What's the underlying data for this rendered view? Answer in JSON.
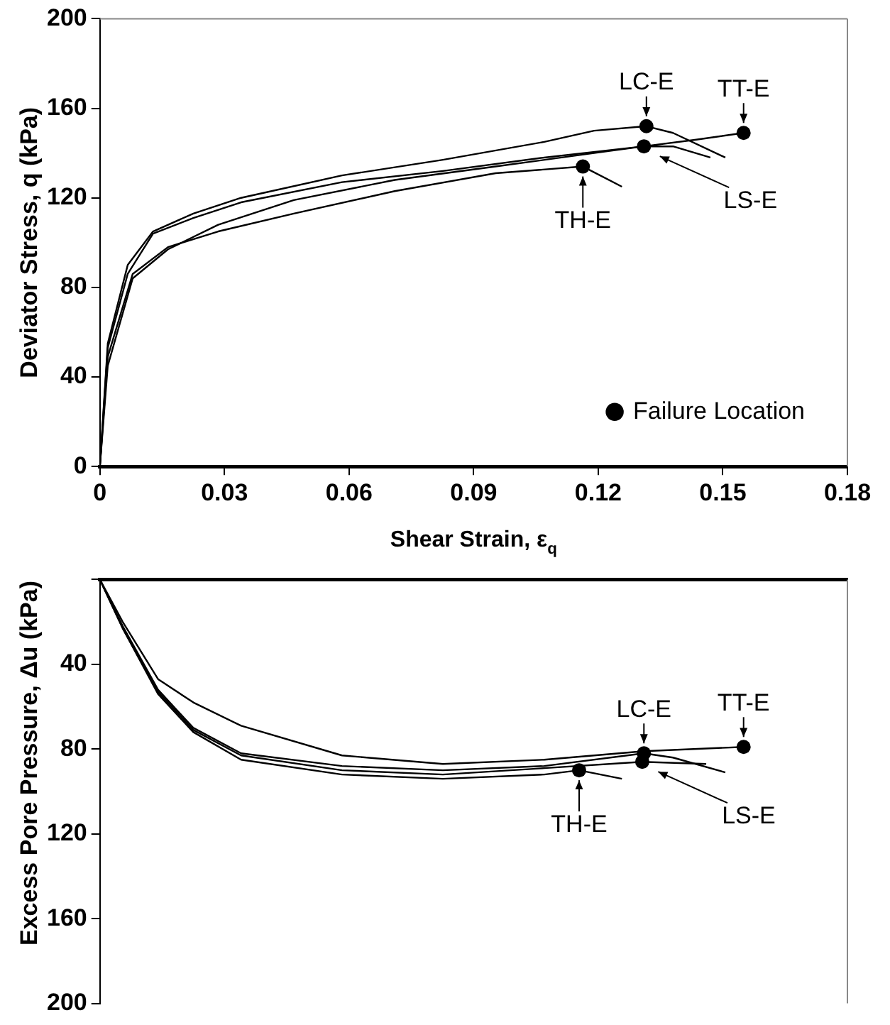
{
  "chart_data": [
    {
      "type": "line",
      "ylabel": "Deviator Stress, q (kPa)",
      "xlabel": "Shear Strain, ε$_{q}$",
      "xlim": [
        0,
        0.18
      ],
      "xticks": [
        0,
        0.03,
        0.06,
        0.09,
        0.12,
        0.15,
        0.18
      ],
      "ylim": [
        0,
        200
      ],
      "yticks": [
        0,
        40,
        80,
        120,
        160,
        200
      ],
      "legend": "bottom right",
      "series": [
        {
          "name": "LC-E",
          "color": "#000000",
          "x": [
            0,
            0.0019,
            0.0067,
            0.0128,
            0.0225,
            0.034,
            0.0583,
            0.0826,
            0.107,
            0.119,
            0.1316,
            0.138,
            0.1506
          ],
          "values": [
            0,
            55,
            90,
            105,
            113,
            120,
            130,
            137,
            145,
            150,
            152,
            149,
            138
          ]
        },
        {
          "name": "LS-E",
          "color": "#000000",
          "x": [
            0,
            0.0019,
            0.0067,
            0.0128,
            0.0225,
            0.034,
            0.0583,
            0.0826,
            0.107,
            0.131,
            0.138,
            0.147
          ],
          "values": [
            0,
            53,
            86,
            104,
            111,
            118,
            127,
            132,
            138,
            143,
            143,
            138
          ]
        },
        {
          "name": "TT-E",
          "color": "#000000",
          "x": [
            0,
            0.0019,
            0.0079,
            0.0164,
            0.0285,
            0.0467,
            0.071,
            0.0953,
            0.119,
            0.131,
            0.1436,
            0.155
          ],
          "values": [
            0,
            45,
            84,
            97,
            108,
            119,
            128,
            134,
            140,
            143,
            146,
            149
          ]
        },
        {
          "name": "TH-E",
          "color": "#000000",
          "x": [
            0,
            0.0019,
            0.0079,
            0.0164,
            0.0285,
            0.0467,
            0.071,
            0.0953,
            0.1163,
            0.1257
          ],
          "values": [
            0,
            49,
            86,
            98,
            105,
            113,
            123,
            131,
            134,
            125
          ]
        },
        {
          "name": "Failure Location",
          "type": "scatter",
          "marker": "circle",
          "color": "#000000",
          "x": [
            0.1316,
            0.131,
            0.155,
            0.1163
          ],
          "values": [
            152,
            143,
            149,
            134
          ]
        }
      ]
    },
    {
      "type": "line",
      "ylabel": "Excess Pore Pressure, Δu (kPa)",
      "xlim": [
        0,
        0.18
      ],
      "ylim": [
        200,
        0
      ],
      "yticks": [
        {
          "value": 0,
          "label": null
        },
        40,
        80,
        120,
        160,
        200
      ],
      "tick_labels": "y",
      "series": [
        {
          "name": "LC-E",
          "color": "#000000",
          "x": [
            0,
            0.0055,
            0.014,
            0.0225,
            0.034,
            0.0583,
            0.0826,
            0.107,
            0.131,
            0.138,
            0.1506
          ],
          "values": [
            0,
            22,
            52,
            70,
            82,
            88,
            90,
            88,
            82,
            84,
            91
          ]
        },
        {
          "name": "LS-E",
          "color": "#000000",
          "x": [
            0,
            0.0055,
            0.014,
            0.0225,
            0.034,
            0.0583,
            0.0826,
            0.107,
            0.1306,
            0.146
          ],
          "values": [
            0,
            23,
            53,
            71,
            83,
            90,
            92,
            89,
            86,
            87
          ]
        },
        {
          "name": "TT-E",
          "color": "#000000",
          "x": [
            0,
            0.0055,
            0.014,
            0.0225,
            0.034,
            0.0583,
            0.0826,
            0.107,
            0.131,
            0.155
          ],
          "values": [
            0,
            20,
            47,
            58,
            69,
            83,
            87,
            85,
            81,
            79
          ]
        },
        {
          "name": "TH-E",
          "color": "#000000",
          "x": [
            0,
            0.0055,
            0.014,
            0.0225,
            0.034,
            0.0583,
            0.0826,
            0.107,
            0.1154,
            0.1257
          ],
          "values": [
            0,
            23,
            54,
            72,
            85,
            92,
            94,
            92,
            90,
            94
          ]
        },
        {
          "type": "scatter",
          "marker": "circle",
          "color": "#000000",
          "x": [
            0.131,
            0.1306,
            0.155,
            0.1154
          ],
          "values": [
            82,
            86,
            79,
            90
          ]
        }
      ]
    }
  ]
}
